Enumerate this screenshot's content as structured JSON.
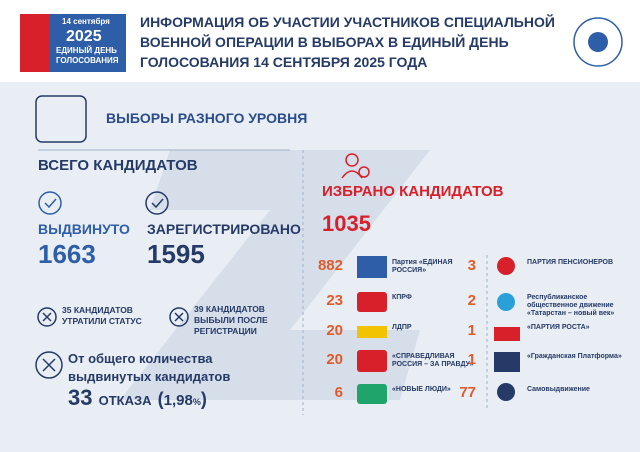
{
  "header": {
    "logo": [
      "14 сентября",
      "2025",
      "ЕДИНЫЙ ДЕНЬ",
      "ГОЛОСОВАНИЯ"
    ],
    "title": [
      "ИНФОРМАЦИЯ ОБ УЧАСТИИ УЧАСТНИКОВ СПЕЦИАЛЬНОЙ",
      "ВОЕННОЙ ОПЕРАЦИИ В ВЫБОРАХ В ЕДИНЫЙ ДЕНЬ",
      "ГОЛОСОВАНИЯ 14 СЕНТЯБРЯ 2025 ГОДА"
    ]
  },
  "left": {
    "section": "ВЫБОРЫ РАЗНОГО УРОВНЯ",
    "total_label": "ВСЕГО КАНДИДАТОВ",
    "nominated": {
      "label": "ВЫДВИНУТО",
      "value": 1663
    },
    "registered": {
      "label": "ЗАРЕГИСТРИРОВАНО",
      "value": 1595
    },
    "lost_status": [
      "35 КАНДИДАТОВ",
      "УТРАТИЛИ СТАТУС"
    ],
    "dropped": [
      "39 КАНДИДАТОВ",
      "ВЫБЫЛИ ПОСЛЕ",
      "РЕГИСТРАЦИИ"
    ],
    "refusals": {
      "text": [
        "От общего количества",
        "выдвинутых кандидатов"
      ],
      "count": 33,
      "word": "ОТКАЗА",
      "open": "(",
      "share": "1,98",
      "unit": "%",
      "close": ")"
    }
  },
  "right": {
    "label": "ИЗБРАНО КАНДИДАТОВ",
    "value": 1035,
    "parties_left": [
      {
        "value": 882,
        "name": "Партия «ЕДИНАЯ РОССИЯ»"
      },
      {
        "value": 23,
        "name": "КПРФ"
      },
      {
        "value": 20,
        "name": "ЛДПР"
      },
      {
        "value": 20,
        "name": "«СПРАВЕДЛИВАЯ РОССИЯ – ЗА ПРАВДУ»"
      },
      {
        "value": 6,
        "name": "«НОВЫЕ ЛЮДИ»"
      }
    ],
    "parties_right": [
      {
        "value": 3,
        "name": "ПАРТИЯ ПЕНСИОНЕРОВ"
      },
      {
        "value": 2,
        "name": "Республиканское общественное движение «Татарстан – новый век»"
      },
      {
        "value": 1,
        "name": "«ПАРТИЯ РОСТА»"
      },
      {
        "value": 1,
        "name": "«Гражданская Платформа»"
      },
      {
        "value": 77,
        "name": "Самовыдвижение"
      }
    ]
  }
}
